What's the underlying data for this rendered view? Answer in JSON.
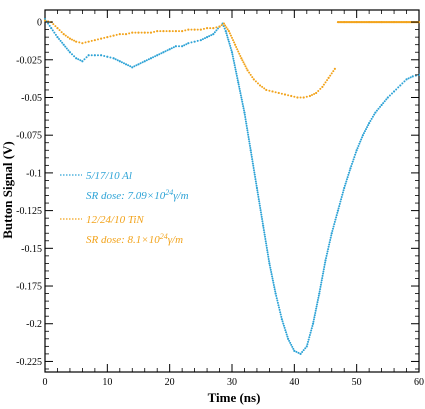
{
  "chart_data": {
    "type": "scatter",
    "title": "",
    "xlabel": "Time (ns)",
    "ylabel": "Button Signal (V)",
    "xlim": [
      0,
      60
    ],
    "ylim": [
      -0.232,
      0.008
    ],
    "x_ticks": [
      0,
      10,
      20,
      30,
      40,
      50,
      60
    ],
    "x_tick_labels": [
      "0",
      "10",
      "20",
      "30",
      "40",
      "50",
      "60"
    ],
    "y_ticks": [
      0,
      -0.025,
      -0.05,
      -0.075,
      -0.1,
      -0.125,
      -0.15,
      -0.175,
      -0.2,
      -0.225
    ],
    "y_tick_labels": [
      "0",
      "-0.025",
      "-0.05",
      "-0.075",
      "-0.1",
      "-0.125",
      "-0.15",
      "-0.175",
      "-0.2",
      "-0.225"
    ],
    "grid": false,
    "legend_position": "middle-left",
    "series": [
      {
        "name": "5/17/10 Al",
        "dose_label": "SR dose: 7.09×10",
        "dose_exp": "24",
        "dose_unit": "γ/m",
        "color": "#2ea3d6",
        "marker": "dots",
        "points": [
          [
            0,
            0.002
          ],
          [
            1.0,
            -0.004
          ],
          [
            2.0,
            -0.01
          ],
          [
            3.0,
            -0.015
          ],
          [
            4.0,
            -0.02
          ],
          [
            5.0,
            -0.024
          ],
          [
            6.0,
            -0.026
          ],
          [
            7.0,
            -0.022
          ],
          [
            8.0,
            -0.022
          ],
          [
            9.0,
            -0.022
          ],
          [
            10.0,
            -0.023
          ],
          [
            11.0,
            -0.024
          ],
          [
            12.0,
            -0.026
          ],
          [
            13.0,
            -0.028
          ],
          [
            14.0,
            -0.03
          ],
          [
            15.0,
            -0.028
          ],
          [
            16.0,
            -0.026
          ],
          [
            17.0,
            -0.024
          ],
          [
            18.0,
            -0.022
          ],
          [
            19.0,
            -0.02
          ],
          [
            20.0,
            -0.018
          ],
          [
            21.0,
            -0.016
          ],
          [
            22.0,
            -0.016
          ],
          [
            23.0,
            -0.014
          ],
          [
            24.0,
            -0.013
          ],
          [
            25.0,
            -0.012
          ],
          [
            26.0,
            -0.01
          ],
          [
            27.0,
            -0.008
          ],
          [
            28.0,
            -0.003
          ],
          [
            28.5,
            -0.001
          ],
          [
            29.0,
            -0.006
          ],
          [
            30.0,
            -0.02
          ],
          [
            31.0,
            -0.04
          ],
          [
            32.0,
            -0.06
          ],
          [
            33.0,
            -0.085
          ],
          [
            34.0,
            -0.11
          ],
          [
            35.0,
            -0.135
          ],
          [
            36.0,
            -0.16
          ],
          [
            37.0,
            -0.18
          ],
          [
            38.0,
            -0.197
          ],
          [
            39.0,
            -0.21
          ],
          [
            40.0,
            -0.218
          ],
          [
            41.0,
            -0.22
          ],
          [
            42.0,
            -0.215
          ],
          [
            43.0,
            -0.2
          ],
          [
            44.0,
            -0.18
          ],
          [
            45.0,
            -0.158
          ],
          [
            46.0,
            -0.14
          ],
          [
            47.0,
            -0.125
          ],
          [
            48.0,
            -0.11
          ],
          [
            49.0,
            -0.097
          ],
          [
            50.0,
            -0.085
          ],
          [
            51.0,
            -0.075
          ],
          [
            52.0,
            -0.067
          ],
          [
            53.0,
            -0.06
          ],
          [
            54.0,
            -0.055
          ],
          [
            55.0,
            -0.05
          ],
          [
            56.0,
            -0.046
          ],
          [
            57.0,
            -0.042
          ],
          [
            58.0,
            -0.038
          ],
          [
            59.0,
            -0.036
          ],
          [
            60.0,
            -0.035
          ]
        ]
      },
      {
        "name": "12/24/10 TiN",
        "dose_label": "SR dose: 8.1×10",
        "dose_exp": "24",
        "dose_unit": "γ/m",
        "color": "#f2a31b",
        "marker": "dots",
        "points": [
          [
            0,
            0.001
          ],
          [
            1.0,
            0.0
          ],
          [
            2.0,
            -0.004
          ],
          [
            3.0,
            -0.008
          ],
          [
            4.0,
            -0.011
          ],
          [
            5.0,
            -0.013
          ],
          [
            6.0,
            -0.014
          ],
          [
            7.0,
            -0.013
          ],
          [
            8.0,
            -0.012
          ],
          [
            9.0,
            -0.011
          ],
          [
            10.0,
            -0.01
          ],
          [
            11.0,
            -0.009
          ],
          [
            12.0,
            -0.008
          ],
          [
            13.0,
            -0.008
          ],
          [
            14.0,
            -0.007
          ],
          [
            15.0,
            -0.007
          ],
          [
            16.0,
            -0.007
          ],
          [
            17.0,
            -0.007
          ],
          [
            18.0,
            -0.006
          ],
          [
            19.0,
            -0.006
          ],
          [
            20.0,
            -0.006
          ],
          [
            21.0,
            -0.006
          ],
          [
            22.0,
            -0.006
          ],
          [
            23.0,
            -0.005
          ],
          [
            24.0,
            -0.005
          ],
          [
            25.0,
            -0.005
          ],
          [
            26.0,
            -0.004
          ],
          [
            27.0,
            -0.004
          ],
          [
            28.0,
            -0.003
          ],
          [
            28.7,
            -0.001
          ],
          [
            29.5,
            -0.006
          ],
          [
            30.5,
            -0.015
          ],
          [
            31.5,
            -0.024
          ],
          [
            32.5,
            -0.032
          ],
          [
            33.5,
            -0.038
          ],
          [
            34.5,
            -0.042
          ],
          [
            35.5,
            -0.045
          ],
          [
            36.5,
            -0.046
          ],
          [
            37.5,
            -0.047
          ],
          [
            38.5,
            -0.048
          ],
          [
            39.5,
            -0.049
          ],
          [
            40.5,
            -0.05
          ],
          [
            41.5,
            -0.05
          ],
          [
            42.5,
            -0.049
          ],
          [
            43.5,
            -0.047
          ],
          [
            44.5,
            -0.043
          ],
          [
            45.5,
            -0.037
          ],
          [
            46.5,
            -0.031
          ],
          [
            47.0,
            0.0
          ],
          [
            48.0,
            0.0
          ],
          [
            50.0,
            0.0
          ],
          [
            52.0,
            0.0
          ],
          [
            54.0,
            0.0
          ],
          [
            56.0,
            0.0
          ],
          [
            58.0,
            0.0
          ],
          [
            60.0,
            0.0
          ]
        ]
      }
    ]
  }
}
